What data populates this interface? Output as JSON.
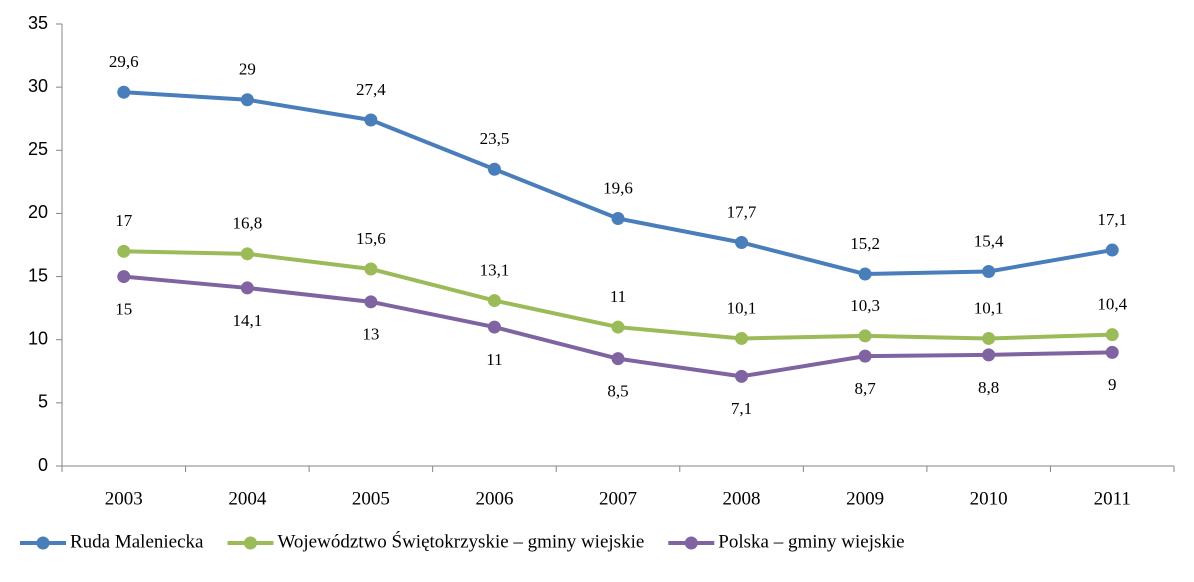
{
  "chart_data": {
    "type": "line",
    "categories": [
      "2003",
      "2004",
      "2005",
      "2006",
      "2007",
      "2008",
      "2009",
      "2010",
      "2011"
    ],
    "series": [
      {
        "name": "Ruda Maleniecka",
        "color": "#4a7ebb",
        "values": [
          29.6,
          29,
          27.4,
          23.5,
          19.6,
          17.7,
          15.2,
          15.4,
          17.1
        ],
        "value_labels": [
          "29,6",
          "29",
          "27,4",
          "23,5",
          "19,6",
          "17,7",
          "15,2",
          "15,4",
          "17,1"
        ]
      },
      {
        "name": "Województwo Świętokrzyskie – gminy wiejskie",
        "color": "#9bbb59",
        "values": [
          17,
          16.8,
          15.6,
          13.1,
          11,
          10.1,
          10.3,
          10.1,
          10.4
        ],
        "value_labels": [
          "17",
          "16,8",
          "15,6",
          "13,1",
          "11",
          "10,1",
          "10,3",
          "10,1",
          "10,4"
        ]
      },
      {
        "name": "Polska – gminy wiejskie",
        "color": "#8064a2",
        "values": [
          15,
          14.1,
          13,
          11,
          8.5,
          7.1,
          8.7,
          8.8,
          9
        ],
        "value_labels": [
          "15",
          "14,1",
          "13",
          "11",
          "8,5",
          "7,1",
          "8,7",
          "8,8",
          "9"
        ]
      }
    ],
    "ylim": [
      0,
      35
    ],
    "yticks": [
      0,
      5,
      10,
      15,
      20,
      25,
      30,
      35
    ],
    "grid": false,
    "legend": "bottom"
  }
}
